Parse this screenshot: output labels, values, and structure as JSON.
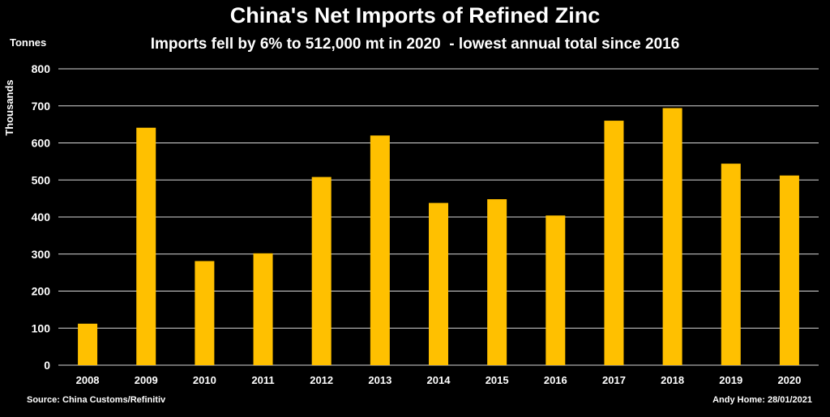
{
  "chart_data": {
    "type": "bar",
    "title": "China's Net Imports of Refined Zinc",
    "subtitle": "Imports fell by 6% to 512,000 mt in 2020  - lowest annual total since 2016",
    "unit_label": "Tonnes",
    "ylabel": "Thousands",
    "xlabel": "",
    "categories": [
      "2008",
      "2009",
      "2010",
      "2011",
      "2012",
      "2013",
      "2014",
      "2015",
      "2016",
      "2017",
      "2018",
      "2019",
      "2020"
    ],
    "values": [
      112,
      641,
      281,
      302,
      508,
      620,
      438,
      448,
      404,
      660,
      694,
      544,
      512
    ],
    "ylim": [
      0,
      800
    ],
    "yticks": [
      0,
      100,
      200,
      300,
      400,
      500,
      600,
      700,
      800
    ],
    "grid": true,
    "bar_color": "#FFC000",
    "grid_color": "#D9D9D9",
    "background": "#000000",
    "source": "Source: China Customs/Refinitiv",
    "credit": "Andy Home: 28/01/2021"
  }
}
